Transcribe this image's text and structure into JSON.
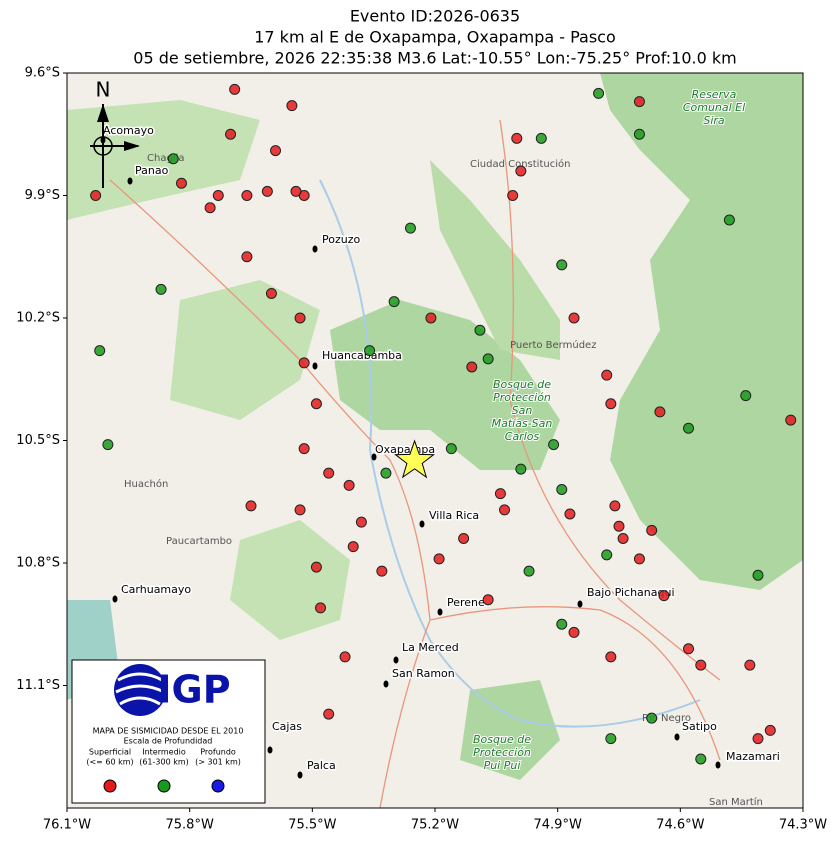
{
  "chart_data": {
    "type": "scatter",
    "title": [
      "Evento ID:2026-0635",
      "17 km al E de Oxapampa, Oxapampa - Pasco",
      "05 de setiembre, 2026 22:35:38 M3.6 Lat:-10.55° Lon:-75.25° Prof:10.0 km"
    ],
    "xlim": [
      -76.1,
      -74.3
    ],
    "ylim": [
      -11.4,
      -9.6
    ],
    "xticks": [
      {
        "value": -76.1,
        "label": "76.1°W"
      },
      {
        "value": -75.8,
        "label": "75.8°W"
      },
      {
        "value": -75.5,
        "label": "75.5°W"
      },
      {
        "value": -75.2,
        "label": "75.2°W"
      },
      {
        "value": -74.9,
        "label": "74.9°W"
      },
      {
        "value": -74.6,
        "label": "74.6°W"
      },
      {
        "value": -74.3,
        "label": "74.3°W"
      }
    ],
    "yticks": [
      {
        "value": -9.6,
        "label": "9.6°S"
      },
      {
        "value": -9.9,
        "label": "9.9°S"
      },
      {
        "value": -10.2,
        "label": "10.2°S"
      },
      {
        "value": -10.5,
        "label": "10.5°S"
      },
      {
        "value": -10.8,
        "label": "10.8°S"
      },
      {
        "value": -11.1,
        "label": "11.1°S"
      }
    ],
    "series": [
      {
        "name": "Superficial",
        "range": "(<= 60 km)",
        "color": "#e41a1c",
        "x": [
          -75.52,
          -75.61,
          -75.66,
          -75.73,
          -75.75,
          -75.54,
          -75.66,
          -75.6,
          -75.53,
          -75.52,
          -75.49,
          -75.52,
          -75.46,
          -75.41,
          -75.65,
          -75.53,
          -75.38,
          -75.4,
          -75.49,
          -75.33,
          -75.48,
          -75.42,
          -75.46,
          -75.21,
          -75.11,
          -75.13,
          -75.04,
          -75.0,
          -75.01,
          -74.99,
          -74.86,
          -74.78,
          -74.77,
          -74.67,
          -74.75,
          -74.74,
          -74.7,
          -74.76,
          -74.65,
          -74.64,
          -74.58,
          -74.55,
          -74.43,
          -74.41,
          -74.38,
          -74.33,
          -74.7,
          -75.69,
          -75.55,
          -75.59,
          -75.82,
          -76.03,
          -74.87,
          -75.03,
          -75.7,
          -75.19,
          -75.07,
          -74.86,
          -74.77
        ],
        "y": [
          -9.9,
          -9.89,
          -9.9,
          -9.9,
          -9.93,
          -9.89,
          -10.05,
          -10.14,
          -10.2,
          -10.31,
          -10.41,
          -10.52,
          -10.58,
          -10.61,
          -10.66,
          -10.67,
          -10.7,
          -10.76,
          -10.81,
          -10.82,
          -10.91,
          -11.03,
          -11.17,
          -10.2,
          -10.32,
          -10.74,
          -10.63,
          -9.76,
          -9.9,
          -9.84,
          -10.2,
          -10.34,
          -10.41,
          -10.72,
          -10.71,
          -10.74,
          -10.79,
          -10.66,
          -10.43,
          -10.88,
          -11.01,
          -11.05,
          -11.05,
          -11.23,
          -11.21,
          -10.45,
          -9.67,
          -9.64,
          -9.68,
          -9.79,
          -9.87,
          -9.9,
          -10.68,
          -10.67,
          -9.75,
          -10.79,
          -10.89,
          -10.97,
          -11.03
        ]
      },
      {
        "name": "Intermedio",
        "range": "(61-300 km)",
        "color": "#1a9a1a",
        "x": [
          -74.94,
          -74.7,
          -74.8,
          -74.89,
          -75.09,
          -75.07,
          -74.91,
          -74.78,
          -74.44,
          -74.41,
          -74.48,
          -74.97,
          -75.32,
          -74.58,
          -75.16,
          -75.3,
          -75.87,
          -76.02,
          -76.0,
          -75.84,
          -74.99,
          -74.55,
          -74.77,
          -74.67,
          -74.89,
          -74.89,
          -75.26,
          -75.36
        ],
        "y": [
          -9.76,
          -9.75,
          -9.65,
          -10.07,
          -10.23,
          -10.3,
          -10.51,
          -10.78,
          -10.39,
          -10.83,
          -9.96,
          -10.82,
          -10.58,
          -10.47,
          -10.52,
          -10.16,
          -10.13,
          -10.28,
          -10.51,
          -9.81,
          -10.57,
          -11.28,
          -11.23,
          -11.18,
          -10.95,
          -10.62,
          -9.98,
          -10.28
        ]
      },
      {
        "name": "Profundo",
        "range": "(> 301 km)",
        "color": "#1a1ae4",
        "x": [],
        "y": []
      }
    ],
    "epicenter": {
      "x": -75.25,
      "y": -10.55,
      "color": "#ffff55"
    },
    "north": "N",
    "towns": [
      "Acomayo",
      "Panao",
      "Pozuzo",
      "Huancabamba",
      "Oxapampa",
      "Villa Rica",
      "Carhuamayo",
      "Perene",
      "Bajo Pichanaqui",
      "La Merced",
      "San Ramon",
      "Satipo",
      "Mazamari",
      "Cajas",
      "Palca"
    ],
    "places": [
      "Ciudad Constitución",
      "Puerto Bermúdez",
      "Huachón",
      "Paucartambo",
      "Río Negro",
      "San Martín",
      "Chaglla"
    ],
    "parks": [
      "Reserva Comunal El Sira",
      "Bosque de Protección San Matías-San Carlos",
      "Bosque de Protección Pui Pui"
    ],
    "legend": {
      "logo": "IGP",
      "title": "MAPA DE SISMICIDAD DESDE EL 2010",
      "subtitle": "Escala de Profundidad"
    }
  }
}
